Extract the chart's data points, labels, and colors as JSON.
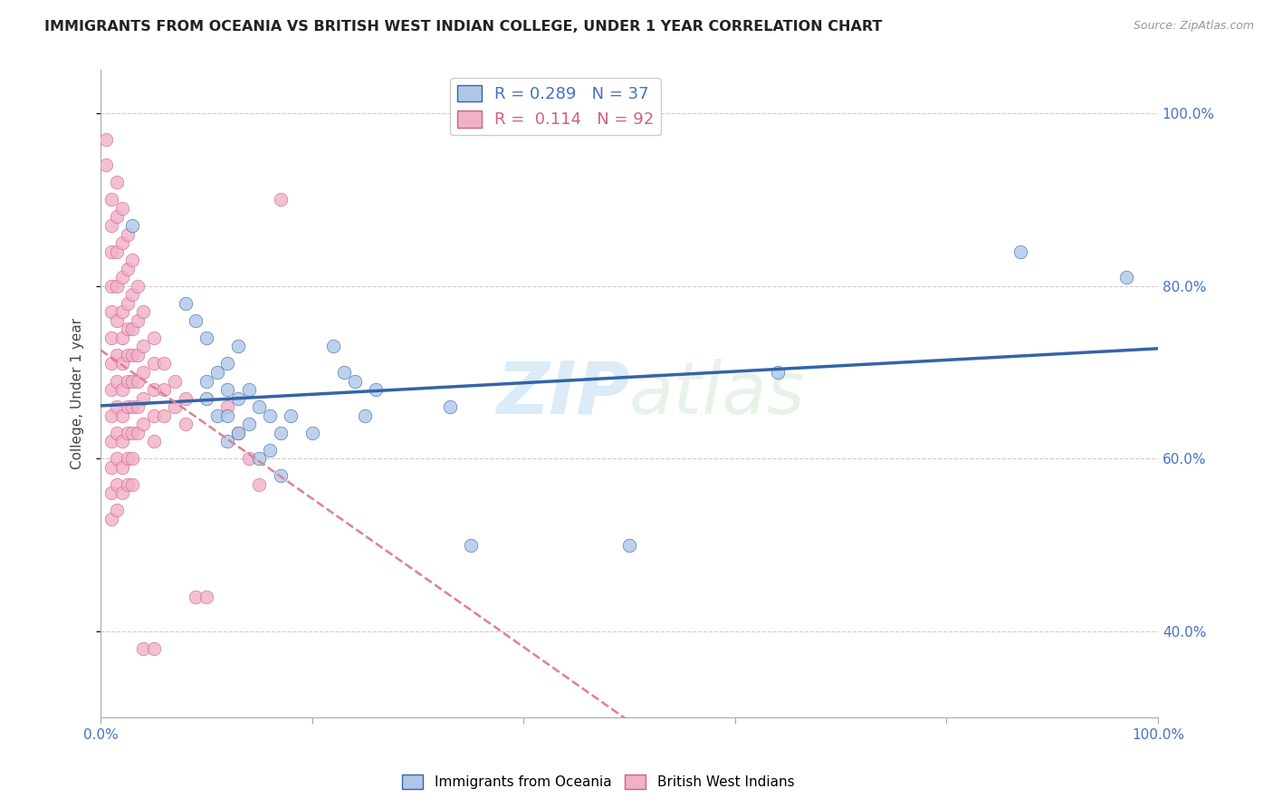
{
  "title": "IMMIGRANTS FROM OCEANIA VS BRITISH WEST INDIAN COLLEGE, UNDER 1 YEAR CORRELATION CHART",
  "source": "Source: ZipAtlas.com",
  "ylabel": "College, Under 1 year",
  "y_ticks": [
    "40.0%",
    "60.0%",
    "80.0%",
    "100.0%"
  ],
  "y_tick_vals": [
    0.4,
    0.6,
    0.8,
    1.0
  ],
  "x_range": [
    0.0,
    1.0
  ],
  "y_range": [
    0.3,
    1.05
  ],
  "blue_R": 0.289,
  "blue_N": 37,
  "pink_R": 0.114,
  "pink_N": 92,
  "watermark_zip": "ZIP",
  "watermark_atlas": "atlas",
  "blue_color": "#aec6e8",
  "pink_color": "#f0b0c8",
  "blue_line_color": "#3464a8",
  "pink_line_color": "#d06080",
  "pink_line_dash_color": "#e08090",
  "legend_blue_label": "Immigrants from Oceania",
  "legend_pink_label": "British West Indians",
  "blue_scatter": [
    [
      0.03,
      0.87
    ],
    [
      0.08,
      0.78
    ],
    [
      0.09,
      0.76
    ],
    [
      0.1,
      0.74
    ],
    [
      0.1,
      0.69
    ],
    [
      0.1,
      0.67
    ],
    [
      0.11,
      0.7
    ],
    [
      0.11,
      0.65
    ],
    [
      0.12,
      0.71
    ],
    [
      0.12,
      0.68
    ],
    [
      0.12,
      0.65
    ],
    [
      0.12,
      0.62
    ],
    [
      0.13,
      0.73
    ],
    [
      0.13,
      0.67
    ],
    [
      0.13,
      0.63
    ],
    [
      0.14,
      0.68
    ],
    [
      0.14,
      0.64
    ],
    [
      0.15,
      0.66
    ],
    [
      0.15,
      0.6
    ],
    [
      0.16,
      0.65
    ],
    [
      0.16,
      0.61
    ],
    [
      0.17,
      0.63
    ],
    [
      0.17,
      0.58
    ],
    [
      0.18,
      0.65
    ],
    [
      0.2,
      0.63
    ],
    [
      0.22,
      0.73
    ],
    [
      0.23,
      0.7
    ],
    [
      0.24,
      0.69
    ],
    [
      0.25,
      0.65
    ],
    [
      0.26,
      0.68
    ],
    [
      0.33,
      0.66
    ],
    [
      0.35,
      0.5
    ],
    [
      0.5,
      0.5
    ],
    [
      0.64,
      0.7
    ],
    [
      0.87,
      0.84
    ],
    [
      0.97,
      0.81
    ]
  ],
  "pink_scatter": [
    [
      0.005,
      0.97
    ],
    [
      0.005,
      0.94
    ],
    [
      0.01,
      0.9
    ],
    [
      0.01,
      0.87
    ],
    [
      0.01,
      0.84
    ],
    [
      0.01,
      0.8
    ],
    [
      0.01,
      0.77
    ],
    [
      0.01,
      0.74
    ],
    [
      0.01,
      0.71
    ],
    [
      0.01,
      0.68
    ],
    [
      0.01,
      0.65
    ],
    [
      0.01,
      0.62
    ],
    [
      0.01,
      0.59
    ],
    [
      0.01,
      0.56
    ],
    [
      0.01,
      0.53
    ],
    [
      0.015,
      0.92
    ],
    [
      0.015,
      0.88
    ],
    [
      0.015,
      0.84
    ],
    [
      0.015,
      0.8
    ],
    [
      0.015,
      0.76
    ],
    [
      0.015,
      0.72
    ],
    [
      0.015,
      0.69
    ],
    [
      0.015,
      0.66
    ],
    [
      0.015,
      0.63
    ],
    [
      0.015,
      0.6
    ],
    [
      0.015,
      0.57
    ],
    [
      0.015,
      0.54
    ],
    [
      0.02,
      0.89
    ],
    [
      0.02,
      0.85
    ],
    [
      0.02,
      0.81
    ],
    [
      0.02,
      0.77
    ],
    [
      0.02,
      0.74
    ],
    [
      0.02,
      0.71
    ],
    [
      0.02,
      0.68
    ],
    [
      0.02,
      0.65
    ],
    [
      0.02,
      0.62
    ],
    [
      0.02,
      0.59
    ],
    [
      0.02,
      0.56
    ],
    [
      0.025,
      0.86
    ],
    [
      0.025,
      0.82
    ],
    [
      0.025,
      0.78
    ],
    [
      0.025,
      0.75
    ],
    [
      0.025,
      0.72
    ],
    [
      0.025,
      0.69
    ],
    [
      0.025,
      0.66
    ],
    [
      0.025,
      0.63
    ],
    [
      0.025,
      0.6
    ],
    [
      0.025,
      0.57
    ],
    [
      0.03,
      0.83
    ],
    [
      0.03,
      0.79
    ],
    [
      0.03,
      0.75
    ],
    [
      0.03,
      0.72
    ],
    [
      0.03,
      0.69
    ],
    [
      0.03,
      0.66
    ],
    [
      0.03,
      0.63
    ],
    [
      0.03,
      0.6
    ],
    [
      0.03,
      0.57
    ],
    [
      0.035,
      0.8
    ],
    [
      0.035,
      0.76
    ],
    [
      0.035,
      0.72
    ],
    [
      0.035,
      0.69
    ],
    [
      0.035,
      0.66
    ],
    [
      0.035,
      0.63
    ],
    [
      0.04,
      0.77
    ],
    [
      0.04,
      0.73
    ],
    [
      0.04,
      0.7
    ],
    [
      0.04,
      0.67
    ],
    [
      0.04,
      0.64
    ],
    [
      0.05,
      0.74
    ],
    [
      0.05,
      0.71
    ],
    [
      0.05,
      0.68
    ],
    [
      0.05,
      0.65
    ],
    [
      0.05,
      0.62
    ],
    [
      0.06,
      0.71
    ],
    [
      0.06,
      0.68
    ],
    [
      0.06,
      0.65
    ],
    [
      0.07,
      0.69
    ],
    [
      0.07,
      0.66
    ],
    [
      0.08,
      0.67
    ],
    [
      0.08,
      0.64
    ],
    [
      0.09,
      0.44
    ],
    [
      0.1,
      0.44
    ],
    [
      0.12,
      0.66
    ],
    [
      0.13,
      0.63
    ],
    [
      0.14,
      0.6
    ],
    [
      0.15,
      0.57
    ],
    [
      0.17,
      0.9
    ],
    [
      0.04,
      0.38
    ],
    [
      0.05,
      0.38
    ]
  ]
}
